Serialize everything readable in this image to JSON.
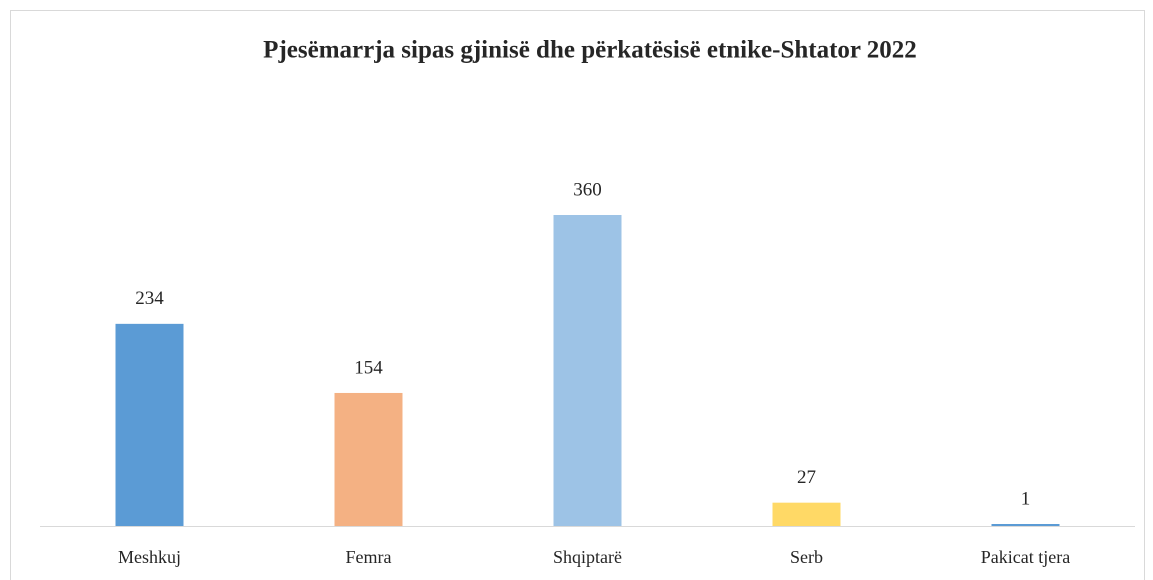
{
  "chart_data": {
    "type": "bar",
    "title": "Pjesëmarrja  sipas gjinisë  dhe  përkatësisë etnike-Shtator 2022",
    "categories": [
      "Meshkuj",
      "Femra",
      "Shqiptarë",
      "Serb",
      "Pakicat tjera"
    ],
    "values": [
      234,
      154,
      360,
      27,
      1
    ],
    "colors": [
      "#5b9bd5",
      "#f4b183",
      "#9dc3e6",
      "#ffd966",
      "#5b9bd5"
    ]
  }
}
